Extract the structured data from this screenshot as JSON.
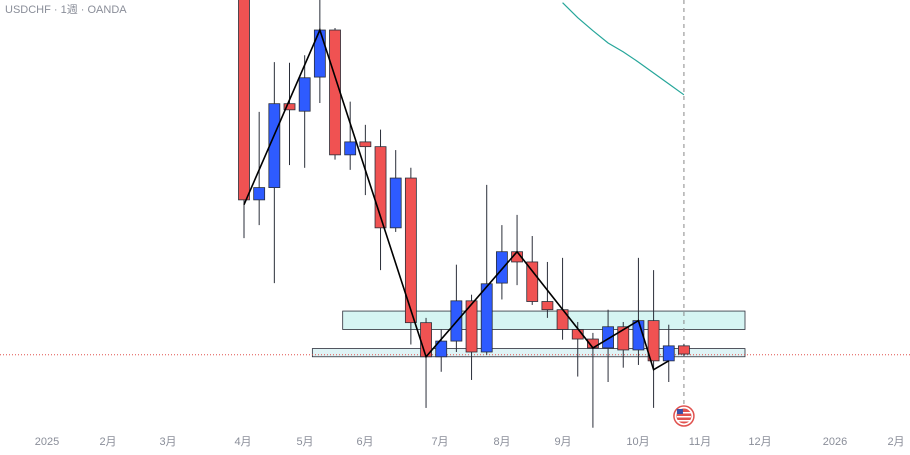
{
  "chart_data": {
    "type": "candlestick",
    "title": "USDCHF · 1週 · OANDA",
    "ylim": [
      0.7853,
      0.852
    ],
    "up_color": "#2e5bff",
    "down_color": "#f05252",
    "open": [
      0.8535,
      0.8227,
      0.8245,
      0.8368,
      0.8357,
      0.8407,
      0.8476,
      0.8293,
      0.8312,
      0.8305,
      0.8186,
      0.8259,
      0.8047,
      0.7997,
      0.802,
      0.8079,
      0.8004,
      0.8105,
      0.8151,
      0.8136,
      0.8078,
      0.8066,
      0.8037,
      0.8023,
      0.801,
      0.8041,
      0.8007,
      0.805,
      0.7991,
      0.8013
    ],
    "high": [
      0.8579,
      0.8356,
      0.8429,
      0.8428,
      0.8439,
      0.852,
      0.8479,
      0.8371,
      0.8337,
      0.833,
      0.83,
      0.8274,
      0.8054,
      0.8037,
      0.8132,
      0.8088,
      0.8249,
      0.819,
      0.8205,
      0.8174,
      0.8136,
      0.8142,
      0.8048,
      0.8032,
      0.8066,
      0.8048,
      0.8142,
      0.8124,
      0.8044,
      0.8016
    ],
    "low": [
      0.8171,
      0.819,
      0.8105,
      0.8278,
      0.8274,
      0.8369,
      0.8286,
      0.8271,
      0.8234,
      0.8124,
      0.818,
      0.8015,
      0.7922,
      0.7975,
      0.8004,
      0.7963,
      0.8,
      0.8081,
      0.8102,
      0.8073,
      0.8054,
      0.8022,
      0.7968,
      0.7893,
      0.796,
      0.7981,
      0.7985,
      0.7922,
      0.796,
      0.7998
    ],
    "close": [
      0.8227,
      0.8245,
      0.8368,
      0.8359,
      0.8406,
      0.8476,
      0.8293,
      0.8312,
      0.8305,
      0.8186,
      0.8259,
      0.8047,
      0.7997,
      0.802,
      0.8079,
      0.8004,
      0.8104,
      0.8151,
      0.8136,
      0.8078,
      0.8066,
      0.8037,
      0.8023,
      0.801,
      0.8041,
      0.8007,
      0.805,
      0.7991,
      0.8013,
      0.8001
    ],
    "zigzag": {
      "color": "#000000",
      "index": [
        0,
        5,
        12,
        18,
        23,
        26,
        27,
        28
      ],
      "values": [
        0.822,
        0.8476,
        0.7997,
        0.8151,
        0.801,
        0.805,
        0.7978,
        0.7991
      ]
    },
    "moving_average": {
      "color": "#26a69a",
      "index": [
        21,
        22,
        23,
        24,
        25,
        26,
        27,
        28,
        29
      ],
      "values": [
        0.8516,
        0.8494,
        0.8475,
        0.8457,
        0.8444,
        0.8429,
        0.8413,
        0.8397,
        0.8381
      ]
    },
    "zones": [
      {
        "start": 7,
        "top": 0.8064,
        "bottom": 0.8037,
        "color": "#d6f5f3"
      },
      {
        "start": 5,
        "top": 0.8009,
        "bottom": 0.7997,
        "color": "#dff3f5"
      }
    ],
    "current_price": 0.8,
    "time_labels": [
      "2025",
      "2月",
      "3月",
      "4月",
      "5月",
      "6月",
      "7月",
      "8月",
      "9月",
      "10月",
      "11月",
      "12月",
      "2026",
      "2月"
    ]
  }
}
